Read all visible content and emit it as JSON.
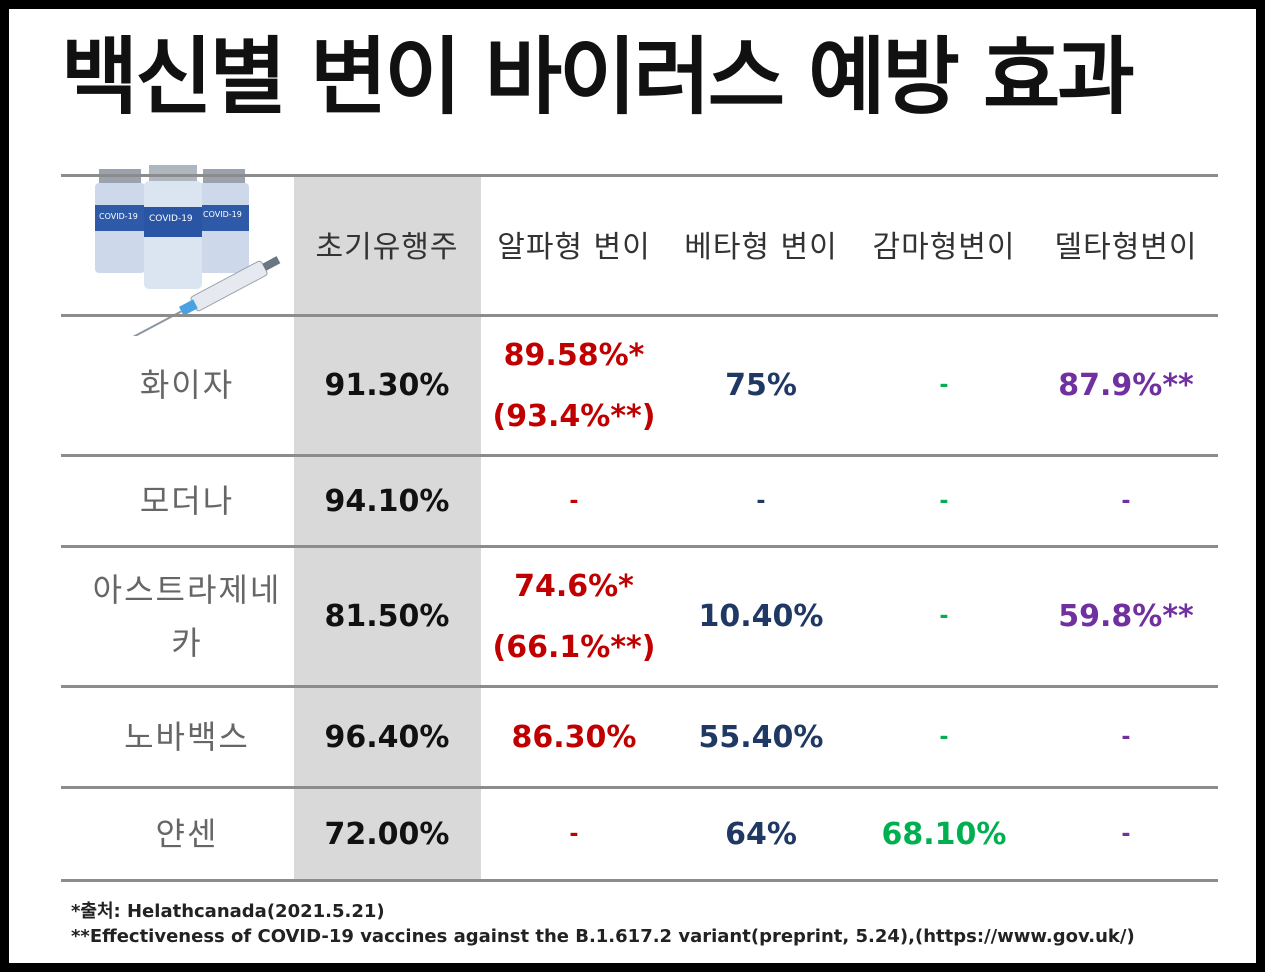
{
  "title": "백신별 변이 바이러스 예방 효과",
  "image_label": "COVID-19",
  "colors": {
    "base": "#111111",
    "alpha": "#c00000",
    "beta": "#1f3864",
    "gamma": "#00b050",
    "delta": "#7030a0",
    "shade": "#d9d9d9"
  },
  "chart_data": {
    "type": "table",
    "columns": [
      "초기유행주",
      "알파형 변이",
      "베타형 변이",
      "감마형변이",
      "델타형변이"
    ],
    "rows": [
      {
        "name": "화이자",
        "values": [
          [
            "91.30%"
          ],
          [
            "89.58%*",
            "(93.4%**)"
          ],
          [
            "75%"
          ],
          [
            "-"
          ],
          [
            "87.9%**"
          ]
        ]
      },
      {
        "name": "모더나",
        "values": [
          [
            "94.10%"
          ],
          [
            "-"
          ],
          [
            "-"
          ],
          [
            "-"
          ],
          [
            "-"
          ]
        ]
      },
      {
        "name": "아스트라제네카",
        "values": [
          [
            "81.50%"
          ],
          [
            "74.6%*",
            "(66.1%**)"
          ],
          [
            "10.40%"
          ],
          [
            "-"
          ],
          [
            "59.8%**"
          ]
        ]
      },
      {
        "name": "노바백스",
        "values": [
          [
            "96.40%"
          ],
          [
            "86.30%"
          ],
          [
            "55.40%"
          ],
          [
            "-"
          ],
          [
            "-"
          ]
        ]
      },
      {
        "name": "얀센",
        "values": [
          [
            "72.00%"
          ],
          [
            "-"
          ],
          [
            "64%"
          ],
          [
            "68.10%"
          ],
          [
            "-"
          ]
        ]
      }
    ]
  },
  "footnotes": {
    "source": "*출처: Helathcanada(2021.5.21)",
    "reference": "**Effectiveness of COVID-19 vaccines against the B.1.617.2 variant(preprint, 5.24),(https://www.gov.uk/)"
  }
}
